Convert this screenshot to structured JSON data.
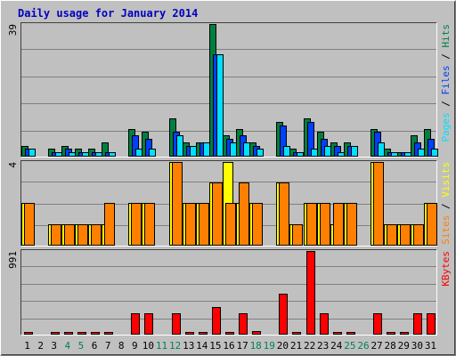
{
  "chart_data": {
    "type": "bar",
    "title": "Daily usage for January 2014",
    "categories": [
      "1",
      "2",
      "3",
      "4",
      "5",
      "6",
      "7",
      "8",
      "9",
      "10",
      "11",
      "12",
      "13",
      "14",
      "15",
      "16",
      "17",
      "18",
      "19",
      "20",
      "21",
      "22",
      "23",
      "24",
      "25",
      "26",
      "27",
      "28",
      "29",
      "30",
      "31"
    ],
    "weekend_days": [
      "4",
      "5",
      "11",
      "12",
      "18",
      "19",
      "25",
      "26"
    ],
    "colors": {
      "hits": "#008040",
      "files": "#0040ff",
      "pages": "#00e0ff",
      "visits": "#ffff00",
      "sites": "#ff8000",
      "kbytes": "#ff0000",
      "weekday_label": "#000000",
      "weekend_label": "#00805c",
      "plot_bg": "#c0c0c0",
      "title": "#0000c0"
    },
    "panels": [
      {
        "id": "hits-files-pages",
        "ymax_label": "39",
        "ylim": [
          0,
          39
        ],
        "legend": [
          {
            "text": "Pages",
            "color": "#00e0ff"
          },
          {
            "text": " / ",
            "color": "#000000"
          },
          {
            "text": "Files",
            "color": "#0040ff"
          },
          {
            "text": " / ",
            "color": "#000000"
          },
          {
            "text": "Hits",
            "color": "#008040"
          }
        ],
        "series": [
          {
            "name": "Hits",
            "color": "#008040",
            "values": [
              3,
              0,
              2,
              3,
              2,
              2,
              4,
              0,
              8,
              7,
              0,
              11,
              4,
              4,
              39,
              6,
              8,
              4,
              0,
              10,
              2,
              11,
              7,
              4,
              4,
              0,
              8,
              2,
              1,
              6,
              8
            ]
          },
          {
            "name": "Files",
            "color": "#0040ff",
            "values": [
              2,
              0,
              1,
              2,
              1,
              1,
              1,
              0,
              6,
              5,
              0,
              7,
              3,
              4,
              30,
              5,
              6,
              3,
              0,
              9,
              1,
              10,
              5,
              3,
              3,
              0,
              7,
              1,
              1,
              4,
              5
            ]
          },
          {
            "name": "Pages",
            "color": "#00e0ff",
            "values": [
              2,
              0,
              1,
              1,
              1,
              1,
              1,
              0,
              2,
              2,
              0,
              6,
              3,
              4,
              30,
              4,
              4,
              2,
              0,
              3,
              1,
              2,
              3,
              1,
              3,
              0,
              4,
              1,
              1,
              2,
              2
            ]
          }
        ]
      },
      {
        "id": "visits-sites",
        "ymax_label": "4",
        "ylim": [
          0,
          4
        ],
        "legend": [
          {
            "text": "Sites",
            "color": "#ff8000"
          },
          {
            "text": " / ",
            "color": "#000000"
          },
          {
            "text": "Visits",
            "color": "#ffff00"
          }
        ],
        "series": [
          {
            "name": "Visits",
            "color": "#ffff00",
            "values": [
              2,
              0,
              1,
              1,
              1,
              1,
              1,
              0,
              2,
              2,
              0,
              4,
              2,
              2,
              3,
              4,
              2,
              2,
              0,
              3,
              1,
              2,
              2,
              1,
              2,
              0,
              4,
              1,
              1,
              1,
              2
            ]
          },
          {
            "name": "Sites",
            "color": "#ff8000",
            "values": [
              2,
              0,
              1,
              1,
              1,
              1,
              2,
              0,
              2,
              2,
              0,
              4,
              2,
              2,
              3,
              2,
              3,
              2,
              0,
              3,
              1,
              2,
              2,
              2,
              2,
              0,
              4,
              1,
              1,
              1,
              2
            ]
          }
        ]
      },
      {
        "id": "kbytes",
        "ymax_label": "991",
        "ylim": [
          0,
          991
        ],
        "legend": [
          {
            "text": "KBytes",
            "color": "#ff0000"
          }
        ],
        "series": [
          {
            "name": "KBytes",
            "color": "#ff0000",
            "values": [
              5,
              0,
              5,
              5,
              5,
              5,
              5,
              0,
              250,
              250,
              0,
              250,
              5,
              5,
              320,
              20,
              250,
              30,
              0,
              480,
              5,
              991,
              250,
              5,
              5,
              0,
              250,
              5,
              5,
              250,
              250
            ]
          }
        ]
      }
    ]
  }
}
